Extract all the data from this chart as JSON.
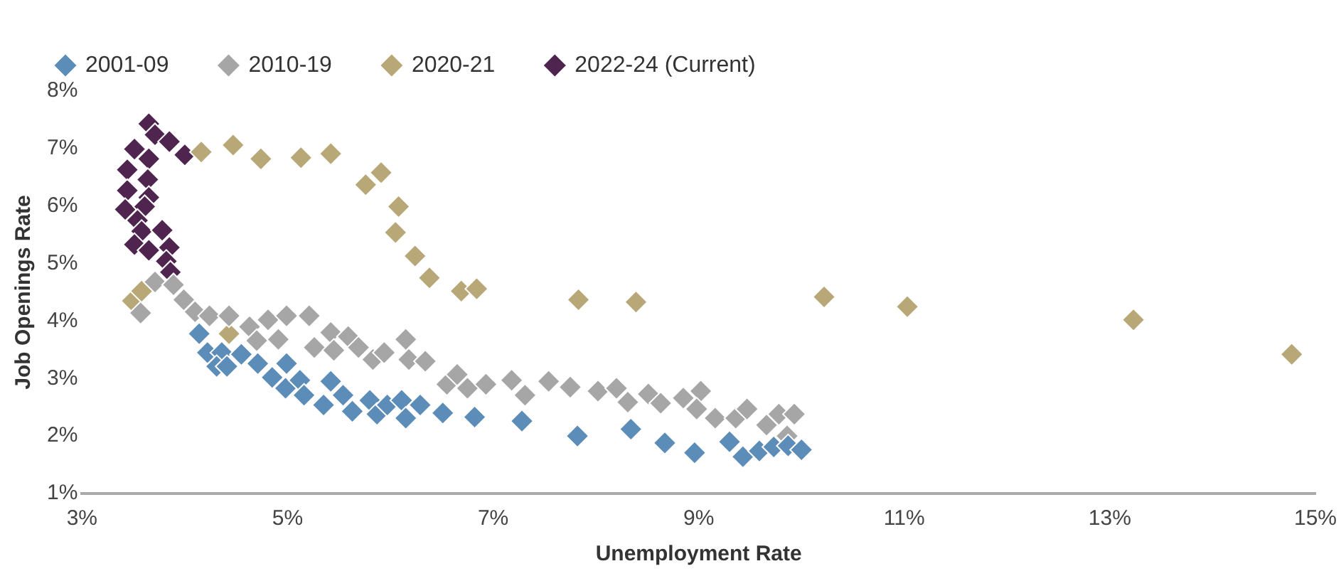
{
  "chart_data": {
    "type": "scatter",
    "xlabel": "Unemployment Rate",
    "ylabel": "Job Openings Rate",
    "xlim": [
      3,
      15
    ],
    "ylim": [
      1,
      8
    ],
    "xticks": [
      {
        "value": 3,
        "label": "3%"
      },
      {
        "value": 5,
        "label": "5%"
      },
      {
        "value": 7,
        "label": "7%"
      },
      {
        "value": 9,
        "label": "9%"
      },
      {
        "value": 11,
        "label": "11%"
      },
      {
        "value": 13,
        "label": "13%"
      },
      {
        "value": 15,
        "label": "15%"
      }
    ],
    "yticks": [
      {
        "value": 1,
        "label": "1%"
      },
      {
        "value": 2,
        "label": "2%"
      },
      {
        "value": 3,
        "label": "3%"
      },
      {
        "value": 4,
        "label": "4%"
      },
      {
        "value": 5,
        "label": "5%"
      },
      {
        "value": 6,
        "label": "6%"
      },
      {
        "value": 7,
        "label": "7%"
      },
      {
        "value": 8,
        "label": "8%"
      }
    ],
    "grid": false,
    "legend": "top",
    "marker": "diamond",
    "series": [
      {
        "name": "2001-09",
        "color": "#5b8db8",
        "x": [
          4.14,
          4.22,
          4.36,
          4.31,
          4.41,
          4.55,
          4.71,
          4.85,
          4.99,
          4.98,
          5.12,
          5.16,
          5.35,
          5.42,
          5.54,
          5.63,
          5.8,
          5.87,
          5.97,
          6.11,
          6.15,
          6.29,
          6.51,
          6.82,
          7.28,
          7.82,
          8.34,
          8.67,
          8.96,
          9.3,
          9.43,
          9.59,
          9.73,
          9.87,
          10.0
        ],
        "values": [
          3.78,
          3.45,
          3.45,
          3.21,
          3.21,
          3.42,
          3.26,
          3.02,
          3.26,
          2.83,
          2.97,
          2.71,
          2.54,
          2.95,
          2.71,
          2.43,
          2.62,
          2.38,
          2.54,
          2.62,
          2.31,
          2.54,
          2.4,
          2.33,
          2.26,
          2.0,
          2.12,
          1.88,
          1.71,
          1.9,
          1.64,
          1.74,
          1.81,
          1.83,
          1.76
        ]
      },
      {
        "name": "2010-19",
        "color": "#a6a6a6",
        "x": [
          3.57,
          3.71,
          3.89,
          3.99,
          4.1,
          4.24,
          4.43,
          4.63,
          4.7,
          4.81,
          4.91,
          4.99,
          5.21,
          5.26,
          5.42,
          5.45,
          5.59,
          5.69,
          5.83,
          5.94,
          6.15,
          6.18,
          6.34,
          6.55,
          6.65,
          6.75,
          6.93,
          7.18,
          7.31,
          7.54,
          7.75,
          8.02,
          8.2,
          8.31,
          8.51,
          8.63,
          8.85,
          9.02,
          8.98,
          9.16,
          9.36,
          9.47,
          9.66,
          9.78,
          9.93,
          9.86
        ],
        "values": [
          4.14,
          4.68,
          4.63,
          4.37,
          4.16,
          4.09,
          4.09,
          3.9,
          3.66,
          4.02,
          3.68,
          4.09,
          4.09,
          3.54,
          3.8,
          3.49,
          3.73,
          3.54,
          3.33,
          3.45,
          3.68,
          3.33,
          3.3,
          2.9,
          3.07,
          2.83,
          2.9,
          2.97,
          2.71,
          2.95,
          2.85,
          2.78,
          2.83,
          2.59,
          2.73,
          2.57,
          2.66,
          2.78,
          2.47,
          2.31,
          2.31,
          2.47,
          2.19,
          2.38,
          2.38,
          2.0
        ]
      },
      {
        "name": "2020-21",
        "color": "#b8a878",
        "x": [
          3.49,
          3.58,
          4.43,
          4.16,
          4.47,
          4.74,
          5.13,
          5.42,
          5.76,
          5.91,
          6.08,
          6.05,
          6.24,
          6.38,
          6.69,
          6.84,
          7.83,
          8.39,
          10.22,
          11.03,
          13.23,
          14.77
        ],
        "values": [
          4.35,
          4.52,
          3.78,
          6.94,
          7.06,
          6.82,
          6.84,
          6.91,
          6.37,
          6.58,
          5.99,
          5.54,
          5.13,
          4.75,
          4.52,
          4.56,
          4.37,
          4.33,
          4.42,
          4.25,
          4.02,
          3.42
        ]
      },
      {
        "name": "2022-24 (Current)",
        "color": "#4f2550",
        "x": [
          3.65,
          3.71,
          3.85,
          4.0,
          3.51,
          3.65,
          3.44,
          3.64,
          3.44,
          3.65,
          3.42,
          3.61,
          3.54,
          3.58,
          3.78,
          3.51,
          3.65,
          3.85,
          3.82,
          3.86
        ],
        "values": [
          7.43,
          7.24,
          7.12,
          6.89,
          6.99,
          6.82,
          6.63,
          6.46,
          6.27,
          6.15,
          5.94,
          5.99,
          5.75,
          5.56,
          5.58,
          5.33,
          5.23,
          5.28,
          5.04,
          4.85
        ]
      }
    ]
  }
}
